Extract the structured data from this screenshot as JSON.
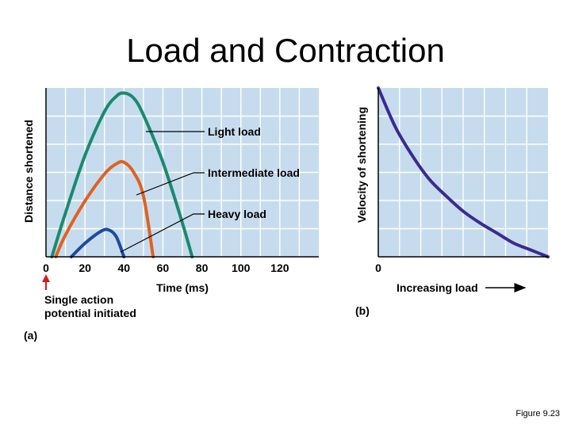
{
  "slide": {
    "title": "Load and Contraction",
    "figure_ref": "Figure 9.23"
  },
  "colors": {
    "plot_bg": "#c6dcee",
    "grid": "#ffffff",
    "light": "#1a8a6e",
    "intermediate": "#e0621f",
    "heavy": "#1e4aa0",
    "velocity": "#3b2a8f",
    "arrow_red": "#cc1f1f"
  },
  "chart_data": [
    {
      "panel": "(a)",
      "type": "line",
      "ylabel": "Distance shortened",
      "xlabel": "Time (ms)",
      "xlim": [
        0,
        140
      ],
      "ylim": [
        0,
        1
      ],
      "xticks": [
        0,
        20,
        40,
        60,
        80,
        100,
        120
      ],
      "grid": true,
      "annotation": "Single action potential initiated",
      "series": [
        {
          "name": "Light load",
          "key": "light",
          "x": [
            3,
            10,
            20,
            30,
            36,
            40,
            45,
            50,
            60,
            70,
            75
          ],
          "y": [
            0,
            0.26,
            0.6,
            0.86,
            0.95,
            0.97,
            0.94,
            0.84,
            0.56,
            0.2,
            0
          ]
        },
        {
          "name": "Intermediate load",
          "key": "intermediate",
          "x": [
            5,
            10,
            20,
            30,
            36,
            40,
            45,
            50,
            55
          ],
          "y": [
            0,
            0.13,
            0.33,
            0.49,
            0.55,
            0.56,
            0.5,
            0.36,
            0
          ]
        },
        {
          "name": "Heavy load",
          "key": "heavy",
          "x": [
            13,
            20,
            28,
            32,
            36,
            40
          ],
          "y": [
            0,
            0.08,
            0.15,
            0.16,
            0.12,
            0
          ]
        }
      ]
    },
    {
      "panel": "(b)",
      "type": "line",
      "ylabel": "Velocity of shortening",
      "xlabel": "Increasing load",
      "origin_label": "0",
      "xlim": [
        0,
        1
      ],
      "ylim": [
        0,
        1
      ],
      "grid": true,
      "series": [
        {
          "name": "Velocity vs. load",
          "key": "velocity",
          "x": [
            0,
            0.1,
            0.2,
            0.3,
            0.4,
            0.5,
            0.6,
            0.7,
            0.8,
            0.9,
            1.0
          ],
          "y": [
            1.0,
            0.77,
            0.6,
            0.46,
            0.36,
            0.27,
            0.2,
            0.14,
            0.08,
            0.04,
            0.0
          ]
        }
      ]
    }
  ]
}
